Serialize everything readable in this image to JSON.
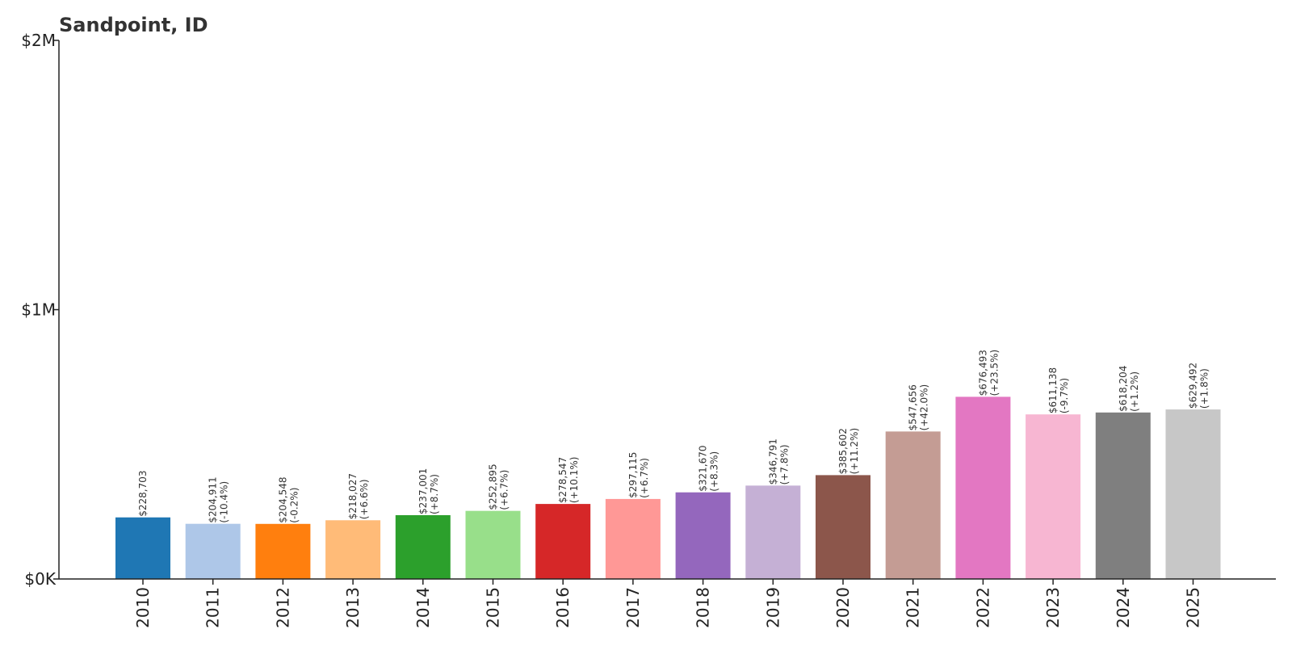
{
  "chart_data": {
    "type": "bar",
    "title": "Sandpoint, ID",
    "xlabel": "",
    "ylabel": "",
    "ylim": [
      0,
      2000000
    ],
    "yticks": [
      {
        "value": 0,
        "label": "$0K"
      },
      {
        "value": 1000000,
        "label": "$1M"
      },
      {
        "value": 2000000,
        "label": "$2M"
      }
    ],
    "grid": false,
    "categories": [
      "2010",
      "2011",
      "2012",
      "2013",
      "2014",
      "2015",
      "2016",
      "2017",
      "2018",
      "2019",
      "2020",
      "2021",
      "2022",
      "2023",
      "2024",
      "2025"
    ],
    "values": [
      228703,
      204911,
      204548,
      218027,
      237001,
      252895,
      278547,
      297115,
      321670,
      346791,
      385602,
      547656,
      676493,
      611138,
      618204,
      629492
    ],
    "value_labels": [
      "$228,703",
      "$204,911",
      "$204,548",
      "$218,027",
      "$237,001",
      "$252,895",
      "$278,547",
      "$297,115",
      "$321,670",
      "$346,791",
      "$385,602",
      "$547,656",
      "$676,493",
      "$611,138",
      "$618,204",
      "$629,492"
    ],
    "change_labels": [
      "",
      "(-10.4%)",
      "(-0.2%)",
      "(+6.6%)",
      "(+8.7%)",
      "(+6.7%)",
      "(+10.1%)",
      "(+6.7%)",
      "(+8.3%)",
      "(+7.8%)",
      "(+11.2%)",
      "(+42.0%)",
      "(+23.5%)",
      "(-9.7%)",
      "(+1.2%)",
      "(+1.8%)"
    ],
    "colors": [
      "#1f77b4",
      "#aec7e8",
      "#ff7f0e",
      "#ffbb78",
      "#2ca02c",
      "#98df8a",
      "#d62728",
      "#ff9896",
      "#9467bd",
      "#c5b0d5",
      "#8c564b",
      "#c49c94",
      "#e377c2",
      "#f7b6d2",
      "#7f7f7f",
      "#c7c7c7"
    ]
  }
}
